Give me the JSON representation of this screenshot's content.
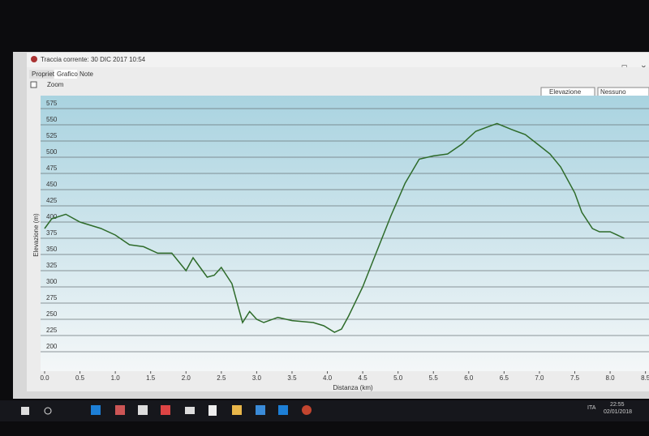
{
  "window": {
    "title": "Traccia corrente: 30 DIC 2017 10:54",
    "tabs": [
      "Proprietà",
      "Grafico",
      "Note"
    ],
    "zoom": "Zoom",
    "dropdowns": [
      "Elevazione",
      "Nessuno"
    ]
  },
  "taskbar": {
    "time": "22:55",
    "date": "02/01/2018",
    "lang": "ITA"
  },
  "chart_data": {
    "type": "line",
    "xlabel": "Distanza  (km)",
    "ylabel": "Elevazione (m)",
    "color": "#2e6b2a",
    "grid": true,
    "x": [
      0.0,
      0.1,
      0.3,
      0.5,
      0.8,
      1.0,
      1.2,
      1.4,
      1.6,
      1.8,
      2.0,
      2.1,
      2.2,
      2.3,
      2.4,
      2.5,
      2.65,
      2.75,
      2.8,
      2.9,
      3.0,
      3.1,
      3.3,
      3.5,
      3.8,
      3.95,
      4.1,
      4.2,
      4.3,
      4.5,
      4.7,
      4.9,
      5.1,
      5.3,
      5.5,
      5.7,
      5.9,
      6.1,
      6.3,
      6.4,
      6.6,
      6.8,
      7.0,
      7.15,
      7.3,
      7.5,
      7.6,
      7.75,
      7.85,
      8.0,
      8.2
    ],
    "values": [
      390,
      405,
      412,
      400,
      390,
      380,
      365,
      362,
      352,
      352,
      325,
      345,
      330,
      315,
      318,
      330,
      305,
      265,
      245,
      262,
      250,
      245,
      253,
      248,
      245,
      240,
      230,
      235,
      255,
      300,
      355,
      410,
      460,
      497,
      502,
      505,
      520,
      540,
      548,
      552,
      543,
      535,
      518,
      505,
      485,
      445,
      415,
      390,
      385,
      385,
      375
    ],
    "xlim": [
      0,
      8.55
    ],
    "ylim": [
      170,
      595
    ],
    "xticks": [
      {
        "value": 0,
        "label": "0.0"
      },
      0.5,
      {
        "value": 1,
        "label": "1.0"
      },
      1.5,
      {
        "value": 2,
        "label": "2.0"
      },
      2.5,
      {
        "value": 3,
        "label": "3.0"
      },
      3.5,
      {
        "value": 4,
        "label": "4.0"
      },
      4.5,
      {
        "value": 5,
        "label": "5.0"
      },
      5.5,
      {
        "value": 6,
        "label": "6.0"
      },
      6.5,
      {
        "value": 7,
        "label": "7.0"
      },
      7.5,
      {
        "value": 8,
        "label": "8.0"
      },
      8.5
    ],
    "yticks": [
      200,
      225,
      250,
      275,
      300,
      325,
      350,
      375,
      400,
      425,
      450,
      475,
      500,
      525,
      550,
      575
    ]
  }
}
